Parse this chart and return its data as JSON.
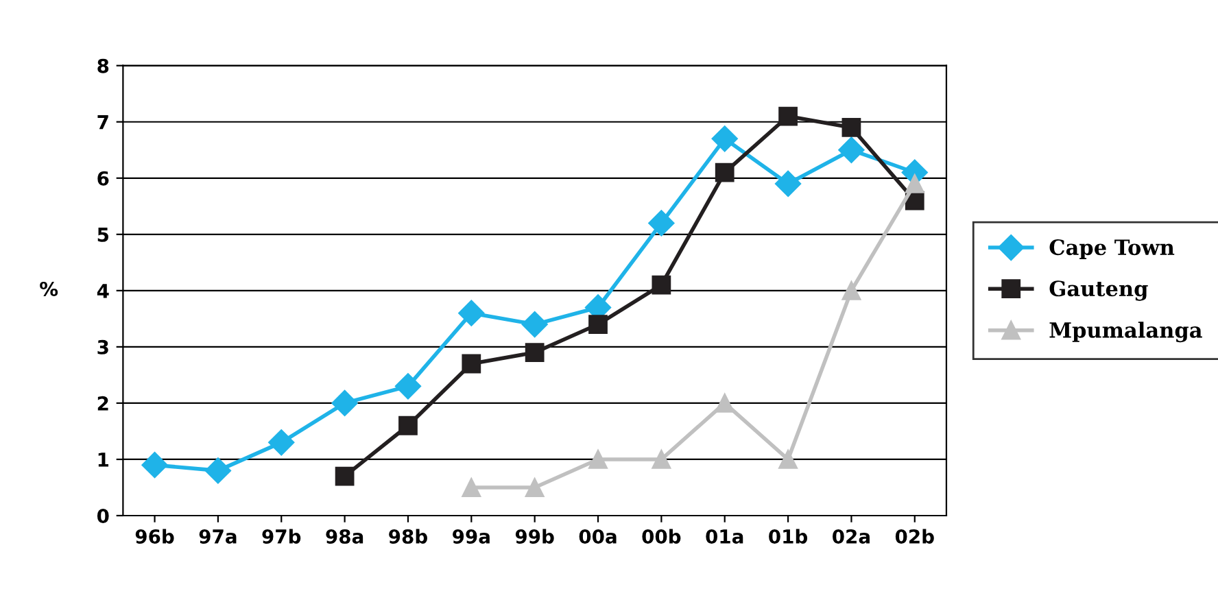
{
  "chart_data": {
    "type": "line",
    "ylabel": "%",
    "categories": [
      "96b",
      "97a",
      "97b",
      "98a",
      "98b",
      "99a",
      "99b",
      "00a",
      "00b",
      "01a",
      "01b",
      "02a",
      "02b"
    ],
    "series": [
      {
        "name": "Cape Town",
        "color": "#1fb3e8",
        "marker": "diamond",
        "values": [
          0.9,
          0.8,
          1.3,
          2.0,
          2.3,
          3.6,
          3.4,
          3.7,
          5.2,
          6.7,
          5.9,
          6.5,
          6.1
        ]
      },
      {
        "name": "Gauteng",
        "color": "#231f20",
        "marker": "square",
        "values": [
          null,
          null,
          null,
          0.7,
          1.6,
          2.7,
          2.9,
          3.4,
          4.1,
          6.1,
          7.1,
          6.9,
          5.6
        ]
      },
      {
        "name": "Mpumalanga",
        "color": "#c0c0c0",
        "marker": "triangle",
        "values": [
          null,
          null,
          null,
          null,
          null,
          0.5,
          0.5,
          1.0,
          1.0,
          2.0,
          1.0,
          4.0,
          5.9
        ]
      }
    ],
    "ylim": [
      0,
      8
    ],
    "yticks": [
      0,
      1,
      2,
      3,
      4,
      5,
      6,
      7,
      8
    ],
    "grid": "y",
    "legend": "right",
    "line_style": "solid"
  }
}
